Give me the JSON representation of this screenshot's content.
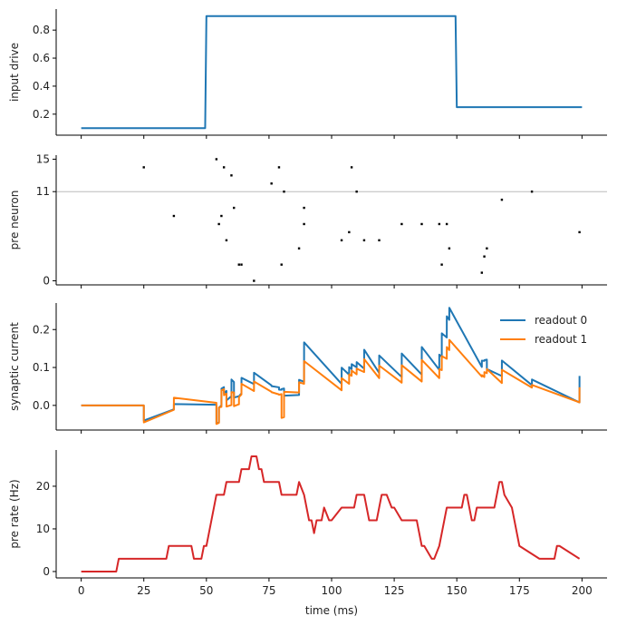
{
  "colors": {
    "blue": "#1f77b4",
    "orange": "#ff7f0e",
    "red": "#d62728",
    "ref_line": "#bbbbbb",
    "spike": "#000000"
  },
  "chart_data": [
    {
      "type": "line",
      "ylabel": "input drive",
      "ylim": [
        0.05,
        0.95
      ],
      "yticks": [
        0.2,
        0.4,
        0.6,
        0.8
      ],
      "ytick_labels": [
        "0.2",
        "0.4",
        "0.6",
        "0.8"
      ],
      "grid": false,
      "series": [
        {
          "color": "#1f77b4",
          "x": [
            0,
            49.5,
            50,
            149.5,
            150,
            200
          ],
          "y": [
            0.1,
            0.1,
            0.9,
            0.9,
            0.25,
            0.25
          ]
        }
      ]
    },
    {
      "type": "scatter",
      "ylabel": "pre neuron",
      "ylim": [
        -0.5,
        15.5
      ],
      "yticks": [
        0,
        11,
        15
      ],
      "ytick_labels": [
        "0",
        "11",
        "15"
      ],
      "reference_line": 11,
      "grid": false,
      "points": {
        "x": [
          25,
          37,
          54,
          55,
          56,
          57,
          58,
          60,
          61,
          63,
          64,
          69,
          76,
          79,
          80,
          81,
          87,
          89,
          89,
          104,
          107,
          108,
          110,
          113,
          119,
          128,
          136,
          143,
          144,
          146,
          147,
          160,
          161,
          162,
          168,
          180,
          199
        ],
        "y": [
          14,
          8,
          15,
          7,
          8,
          14,
          5,
          13,
          9,
          2,
          2,
          0,
          12,
          14,
          2,
          11,
          4,
          7,
          9,
          5,
          6,
          14,
          11,
          5,
          5,
          7,
          7,
          7,
          2,
          7,
          4,
          1,
          3,
          4,
          10,
          11,
          6
        ]
      }
    },
    {
      "type": "line",
      "ylabel": "synaptic current",
      "ylim": [
        -0.065,
        0.27
      ],
      "yticks": [
        0.0,
        0.1,
        0.2
      ],
      "ytick_labels": [
        "0.0",
        "0.1",
        "0.2"
      ],
      "legend": "top-right",
      "grid": false,
      "series": [
        {
          "name": "readout 0",
          "color": "#1f77b4",
          "x": [
            0,
            25,
            25.01,
            37,
            37.01,
            54,
            54.01,
            55,
            55.01,
            56,
            56.01,
            57,
            57.01,
            58,
            58.01,
            60,
            60.01,
            61,
            61.01,
            63,
            63.01,
            64,
            64.01,
            69,
            69.01,
            76,
            76.01,
            79,
            79.01,
            80,
            80.01,
            81,
            81.01,
            87,
            87.01,
            89,
            89.01,
            104,
            104.01,
            107,
            107.01,
            108,
            108.01,
            110,
            110.01,
            113,
            113.01,
            119,
            119.01,
            128,
            128.01,
            136,
            136.01,
            143,
            143.01,
            144,
            144.01,
            146,
            146.01,
            147,
            147.01,
            160,
            160.01,
            161,
            161.01,
            162,
            162.01,
            168,
            168.01,
            180,
            180.01,
            199,
            199.01
          ],
          "y": [
            0,
            0,
            -0.04,
            -0.0104,
            0.0036,
            0.0016,
            -0.0484,
            -0.0444,
            -0.0064,
            0.0001,
            0.0441,
            0.0481,
            0.0321,
            0.0382,
            0.0132,
            0.0243,
            0.0683,
            0.0617,
            0.0207,
            0.0241,
            0.0241,
            0.0317,
            0.0727,
            0.0561,
            0.0861,
            0.0528,
            0.0508,
            0.0476,
            0.0416,
            0.0411,
            0.0431,
            0.0446,
            0.0256,
            0.0274,
            0.0674,
            0.0623,
            0.1663,
            0.0566,
            0.0996,
            0.0809,
            0.1009,
            0.0958,
            0.1088,
            0.1003,
            0.1143,
            0.0969,
            0.1469,
            0.0857,
            0.1317,
            0.0748,
            0.1368,
            0.0811,
            0.1541,
            0.0938,
            0.1338,
            0.1282,
            0.1902,
            0.1791,
            0.2351,
            0.2255,
            0.2575,
            0.1012,
            0.1182,
            0.1173,
            0.1193,
            0.1207,
            0.0957,
            0.0773,
            0.1183,
            0.0533,
            0.0683,
            0.0078,
            0.0778
          ]
        },
        {
          "name": "readout 1",
          "color": "#ff7f0e",
          "x": [
            0,
            25,
            25.01,
            37,
            37.01,
            54,
            54.01,
            55,
            55.01,
            56,
            56.01,
            57,
            57.01,
            58,
            58.01,
            60,
            60.01,
            61,
            61.01,
            63,
            63.01,
            64,
            64.01,
            69,
            69.01,
            76,
            76.01,
            79,
            79.01,
            80,
            80.01,
            81,
            81.01,
            87,
            87.01,
            89,
            89.01,
            104,
            104.01,
            107,
            107.01,
            108,
            108.01,
            110,
            110.01,
            113,
            113.01,
            119,
            119.01,
            128,
            128.01,
            136,
            136.01,
            143,
            143.01,
            144,
            144.01,
            146,
            146.01,
            147,
            147.01,
            160,
            160.01,
            161,
            161.01,
            162,
            162.01,
            168,
            168.01,
            180,
            180.01,
            199,
            199.01
          ],
          "y": [
            0,
            0,
            -0.045,
            -0.0117,
            0.0203,
            0.0069,
            -0.0491,
            -0.0461,
            -0.0051,
            -0.0041,
            0.0399,
            0.0429,
            0.0269,
            0.0309,
            -0.0031,
            0.0009,
            0.0349,
            0.0339,
            -0.0021,
            0.0029,
            0.0219,
            0.0289,
            0.0569,
            0.0379,
            0.0629,
            0.0359,
            0.0349,
            0.0289,
            0.0279,
            0.0299,
            -0.0331,
            -0.0311,
            0.0359,
            0.0339,
            0.0609,
            0.0569,
            0.1169,
            0.0399,
            0.0719,
            0.0569,
            0.0819,
            0.0779,
            0.0919,
            0.0819,
            0.0969,
            0.0879,
            0.1219,
            0.0719,
            0.1049,
            0.0599,
            0.1059,
            0.0629,
            0.1199,
            0.0719,
            0.0959,
            0.0929,
            0.1299,
            0.1229,
            0.1539,
            0.1459,
            0.1729,
            0.0759,
            0.0799,
            0.0749,
            0.0879,
            0.0849,
            0.0959,
            0.0589,
            0.0939,
            0.0469,
            0.0539,
            0.0079,
            0.0479
          ]
        }
      ]
    },
    {
      "type": "line",
      "ylabel": "pre rate (Hz)",
      "xlabel": "time (ms)",
      "xlim": [
        -10,
        210
      ],
      "xticks": [
        0,
        25,
        50,
        75,
        100,
        125,
        150,
        175,
        200
      ],
      "xtick_labels": [
        "0",
        "25",
        "50",
        "75",
        "100",
        "125",
        "150",
        "175",
        "200"
      ],
      "ylim": [
        -1.5,
        28.5
      ],
      "yticks": [
        0,
        10,
        20
      ],
      "ytick_labels": [
        "0",
        "10",
        "20"
      ],
      "grid": false,
      "series": [
        {
          "color": "#d62728",
          "x": [
            0,
            14,
            15,
            24,
            25,
            34,
            35,
            43,
            44,
            45,
            46,
            47,
            48,
            49,
            50,
            51,
            52,
            53,
            54,
            57,
            58,
            63,
            64,
            65,
            66,
            67,
            68,
            69,
            70,
            71,
            72,
            73,
            79,
            80,
            86,
            87,
            89,
            90,
            91,
            92,
            93,
            94,
            96,
            97,
            99,
            100,
            104,
            105,
            109,
            110,
            113,
            114,
            115,
            116,
            118,
            119,
            120,
            121,
            122,
            124,
            125,
            128,
            129,
            134,
            135,
            136,
            137,
            140,
            141,
            143,
            144,
            145,
            146,
            147,
            152,
            153,
            154,
            155,
            156,
            157,
            158,
            165,
            166,
            167,
            168,
            169,
            172,
            173,
            174,
            175,
            183,
            184,
            188,
            189,
            190,
            191,
            199
          ],
          "y": [
            0,
            0,
            3,
            3,
            3,
            3,
            6,
            6,
            6,
            3,
            3,
            3,
            3,
            6,
            6,
            9,
            12,
            15,
            18,
            18,
            21,
            21,
            24,
            24,
            24,
            24,
            27,
            27,
            27,
            24,
            24,
            21,
            21,
            18,
            18,
            21,
            18,
            15,
            12,
            12,
            9,
            12,
            12,
            15,
            12,
            12,
            15,
            15,
            15,
            18,
            18,
            15,
            12,
            12,
            12,
            15,
            18,
            18,
            18,
            15,
            15,
            12,
            12,
            12,
            9,
            6,
            6,
            3,
            3,
            6,
            9,
            12,
            15,
            15,
            15,
            18,
            18,
            15,
            12,
            12,
            15,
            15,
            18,
            21,
            21,
            18,
            15,
            12,
            9,
            6,
            3,
            3,
            3,
            3,
            6,
            6,
            3
          ]
        }
      ]
    }
  ]
}
